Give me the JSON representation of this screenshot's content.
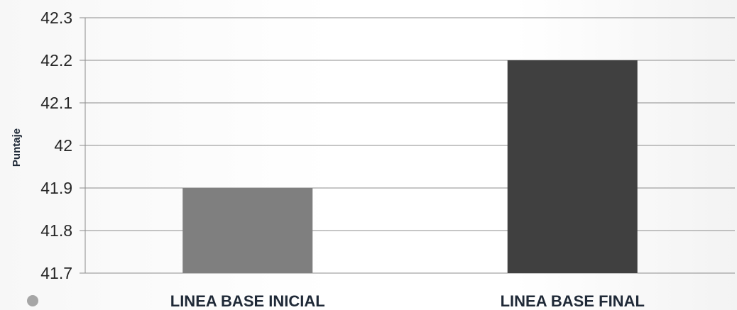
{
  "chart_data": {
    "type": "bar",
    "categories": [
      "LINEA BASE INICIAL",
      "LINEA BASE FINAL"
    ],
    "values": [
      41.9,
      42.2
    ],
    "bar_colors": [
      "#7f7f7f",
      "#404040"
    ],
    "title": "",
    "xlabel": "",
    "ylabel": "Puntaje",
    "ylim": [
      41.7,
      42.3
    ],
    "y_ticks": [
      "41.7",
      "41.8",
      "41.9",
      "42",
      "42.1",
      "42.2",
      "42.3"
    ],
    "grid": true,
    "gridline_color": "#8c8c8c"
  },
  "decoration": {
    "bullet_icon": "bullet-circle-icon",
    "bullet_color": "#a6a6a6"
  }
}
